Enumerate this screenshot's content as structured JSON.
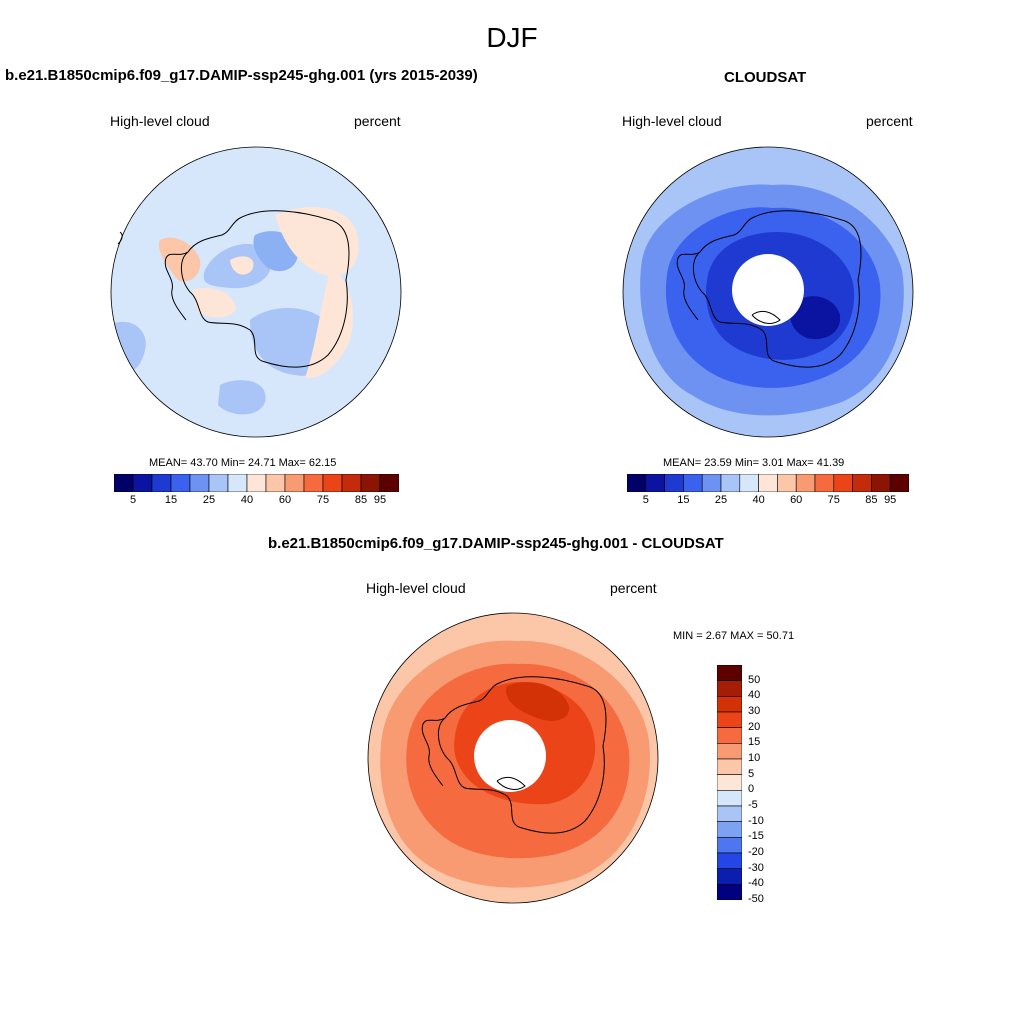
{
  "figure": {
    "title": "DJF"
  },
  "panels": {
    "model": {
      "case_title": "b.e21.B1850cmip6.f09_g17.DAMIP-ssp245-ghg.001 (yrs 2015-2039)",
      "variable": "High-level cloud",
      "units": "percent",
      "stats": "MEAN=  43.70  Min=  24.71  Max=  62.15"
    },
    "obs": {
      "case_title": "CLOUDSAT",
      "variable": "High-level cloud",
      "units": "percent",
      "stats": "MEAN=  23.59  Min=   3.01  Max=  41.39"
    },
    "diff": {
      "case_title": "b.e21.B1850cmip6.f09_g17.DAMIP-ssp245-ghg.001 - CLOUDSAT",
      "variable": "High-level cloud",
      "units": "percent",
      "stats": "MIN =   2.67 MAX =  50.71"
    }
  },
  "colorbars": {
    "abs": {
      "colors": [
        "#000066",
        "#0a14a0",
        "#1e3ad0",
        "#3a62ef",
        "#6e92f2",
        "#a9c4f6",
        "#d6e6fb",
        "#fde6d8",
        "#fcc6a8",
        "#f99b72",
        "#f56a3e",
        "#ea4418",
        "#c42b0a",
        "#8c1404",
        "#5c0000"
      ],
      "tick_labels": [
        "5",
        "15",
        "25",
        "40",
        "60",
        "75",
        "85",
        "95"
      ],
      "tick_boundaries": [
        1,
        3,
        5,
        7,
        9,
        11,
        13,
        14
      ]
    },
    "diff": {
      "colors": [
        "#5c0000",
        "#a51d04",
        "#d33206",
        "#ea4418",
        "#f56a3e",
        "#f99b72",
        "#fcc6a8",
        "#fde6d8",
        "#d6e6fb",
        "#a9c4f6",
        "#7ea2f3",
        "#4d76ef",
        "#2546e6",
        "#0a1fb0",
        "#000080"
      ],
      "tick_labels": [
        "50",
        "40",
        "30",
        "20",
        "15",
        "10",
        "5",
        "0",
        "-5",
        "-10",
        "-15",
        "-20",
        "-30",
        "-40",
        "-50"
      ]
    }
  },
  "map_colors": {
    "model_ocean": "#d6e6fb",
    "model_low": "#a9c4f6",
    "model_low2": "#8cb0f4",
    "model_high": "#fde6d8",
    "model_high2": "#fcc6a8",
    "obs_outer": "#a9c4f6",
    "obs_mid": "#6e92f2",
    "obs_inner": "#3a62ef",
    "obs_core": "#1e3ad0",
    "obs_deep": "#0a14a0",
    "diff_outer": "#fcc6a8",
    "diff_mid": "#f99b72",
    "diff_inner": "#f56a3e",
    "diff_core": "#ea4418",
    "diff_deep": "#d33206"
  }
}
